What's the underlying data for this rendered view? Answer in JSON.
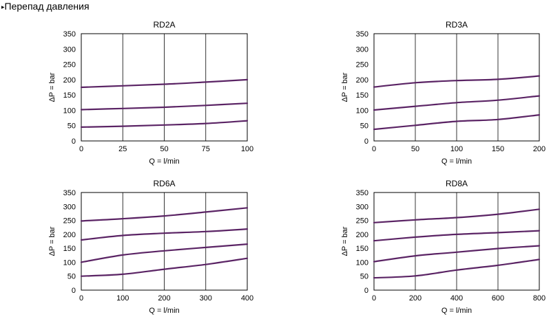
{
  "page": {
    "section_marker": "▸",
    "section_title": "Перепад давления"
  },
  "colors": {
    "curve": "#5a2364",
    "grid": "#000000",
    "frame": "#000000"
  },
  "chart_data": [
    {
      "type": "line",
      "title": "RD2A",
      "xlabel": "Q = l/min",
      "ylabel": "ΔP = bar",
      "xlim": [
        0,
        100
      ],
      "ylim": [
        0,
        350
      ],
      "xticks": [
        0,
        25,
        50,
        75,
        100
      ],
      "yticks": [
        0,
        50,
        100,
        150,
        200,
        250,
        300,
        350
      ],
      "grid": "vertical",
      "series": [
        {
          "name": "curve-1",
          "x": [
            0,
            25,
            50,
            75,
            100
          ],
          "y": [
            175,
            180,
            185,
            192,
            200
          ]
        },
        {
          "name": "curve-2",
          "x": [
            0,
            25,
            50,
            75,
            100
          ],
          "y": [
            102,
            106,
            110,
            116,
            123
          ]
        },
        {
          "name": "curve-3",
          "x": [
            0,
            25,
            50,
            75,
            100
          ],
          "y": [
            45,
            48,
            52,
            57,
            66
          ]
        }
      ]
    },
    {
      "type": "line",
      "title": "RD3A",
      "xlabel": "Q = l/min",
      "ylabel": "ΔP = bar",
      "xlim": [
        0,
        200
      ],
      "ylim": [
        0,
        350
      ],
      "xticks": [
        0,
        50,
        100,
        150,
        200
      ],
      "yticks": [
        0,
        50,
        100,
        150,
        200,
        250,
        300,
        350
      ],
      "grid": "vertical",
      "series": [
        {
          "name": "curve-1",
          "x": [
            0,
            50,
            100,
            150,
            200
          ],
          "y": [
            176,
            190,
            197,
            201,
            212
          ]
        },
        {
          "name": "curve-2",
          "x": [
            0,
            50,
            100,
            150,
            200
          ],
          "y": [
            101,
            113,
            125,
            133,
            147
          ]
        },
        {
          "name": "curve-3",
          "x": [
            0,
            50,
            100,
            150,
            200
          ],
          "y": [
            38,
            51,
            64,
            70,
            85
          ]
        }
      ]
    },
    {
      "type": "line",
      "title": "RD6A",
      "xlabel": "Q = l/min",
      "ylabel": "ΔP = bar",
      "xlim": [
        0,
        400
      ],
      "ylim": [
        0,
        350
      ],
      "xticks": [
        0,
        100,
        200,
        300,
        400
      ],
      "yticks": [
        0,
        50,
        100,
        150,
        200,
        250,
        300,
        350
      ],
      "grid": "vertical",
      "series": [
        {
          "name": "curve-1",
          "x": [
            0,
            100,
            200,
            300,
            400
          ],
          "y": [
            248,
            256,
            266,
            280,
            295
          ]
        },
        {
          "name": "curve-2",
          "x": [
            0,
            100,
            200,
            300,
            400
          ],
          "y": [
            180,
            196,
            204,
            210,
            219
          ]
        },
        {
          "name": "curve-3",
          "x": [
            0,
            100,
            200,
            300,
            400
          ],
          "y": [
            100,
            126,
            141,
            153,
            165
          ]
        },
        {
          "name": "curve-4",
          "x": [
            0,
            100,
            200,
            300,
            400
          ],
          "y": [
            50,
            57,
            75,
            92,
            114
          ]
        }
      ]
    },
    {
      "type": "line",
      "title": "RD8A",
      "xlabel": "Q = l/min",
      "ylabel": "ΔP = bar",
      "xlim": [
        0,
        800
      ],
      "ylim": [
        0,
        350
      ],
      "xticks": [
        0,
        200,
        400,
        600,
        800
      ],
      "yticks": [
        0,
        50,
        100,
        150,
        200,
        250,
        300,
        350
      ],
      "grid": "vertical",
      "series": [
        {
          "name": "curve-1",
          "x": [
            0,
            200,
            400,
            600,
            800
          ],
          "y": [
            242,
            252,
            260,
            272,
            290
          ]
        },
        {
          "name": "curve-2",
          "x": [
            0,
            200,
            400,
            600,
            800
          ],
          "y": [
            177,
            190,
            200,
            206,
            213
          ]
        },
        {
          "name": "curve-3",
          "x": [
            0,
            200,
            400,
            600,
            800
          ],
          "y": [
            102,
            123,
            136,
            149,
            159
          ]
        },
        {
          "name": "curve-4",
          "x": [
            0,
            200,
            400,
            600,
            800
          ],
          "y": [
            44,
            51,
            72,
            89,
            110
          ]
        }
      ]
    }
  ]
}
